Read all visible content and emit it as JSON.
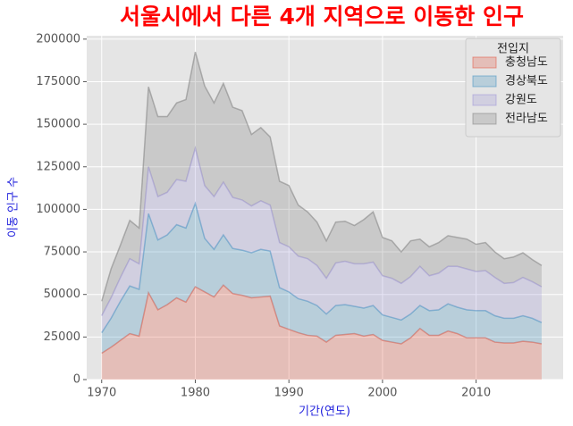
{
  "chart_data": {
    "type": "stacked-area",
    "title": "서울시에서 다른 4개 지역으로 이동한 인구",
    "xlabel": "기간(연도)",
    "ylabel": "이동 인구 수",
    "x": [
      1970,
      1971,
      1972,
      1973,
      1974,
      1975,
      1976,
      1977,
      1978,
      1979,
      1980,
      1981,
      1982,
      1983,
      1984,
      1985,
      1986,
      1987,
      1988,
      1989,
      1990,
      1991,
      1992,
      1993,
      1994,
      1995,
      1996,
      1997,
      1998,
      1999,
      2000,
      2001,
      2002,
      2003,
      2004,
      2005,
      2006,
      2007,
      2008,
      2009,
      2010,
      2011,
      2012,
      2013,
      2014,
      2015,
      2016,
      2017
    ],
    "series": [
      {
        "name": "충청남도",
        "color": "#E24A33",
        "values": [
          15500,
          19000,
          23000,
          27000,
          25500,
          51000,
          41000,
          44000,
          48000,
          45500,
          54500,
          51500,
          48500,
          55500,
          50500,
          49500,
          48000,
          48500,
          49000,
          31500,
          29500,
          27500,
          26000,
          25500,
          22000,
          26000,
          26500,
          27000,
          25500,
          26500,
          23000,
          22000,
          21000,
          24500,
          30000,
          26000,
          26000,
          28500,
          27000,
          24500,
          24500,
          24500,
          22000,
          21500,
          21500,
          22500,
          22000,
          21000
        ]
      },
      {
        "name": "경상북도",
        "color": "#348ABD",
        "values": [
          12000,
          17000,
          23000,
          28000,
          27500,
          46500,
          41000,
          41000,
          43000,
          43500,
          49000,
          31500,
          28000,
          29500,
          26500,
          26500,
          26500,
          28000,
          26500,
          22500,
          22000,
          20000,
          20000,
          18000,
          16500,
          17500,
          17500,
          16000,
          16500,
          17000,
          15000,
          14500,
          14000,
          14000,
          13500,
          14500,
          15000,
          16000,
          15500,
          16500,
          16000,
          16000,
          15500,
          14500,
          14500,
          15000,
          14000,
          12500
        ]
      },
      {
        "name": "강원도",
        "color": "#988ED5",
        "values": [
          10000,
          12000,
          14000,
          16000,
          15000,
          27500,
          25500,
          25000,
          26500,
          27500,
          32500,
          31000,
          31000,
          31000,
          30000,
          29500,
          27500,
          28500,
          27000,
          26500,
          26500,
          25000,
          25000,
          23500,
          21000,
          25000,
          25500,
          25000,
          26000,
          25500,
          23000,
          23000,
          21500,
          22000,
          23000,
          20500,
          21500,
          22000,
          24000,
          24000,
          23000,
          23500,
          22500,
          20500,
          21000,
          22500,
          21500,
          21000
        ]
      },
      {
        "name": "전라남도",
        "color": "#777777",
        "values": [
          8500,
          17000,
          19000,
          22500,
          21000,
          47000,
          47000,
          44500,
          45000,
          48000,
          56500,
          58500,
          55000,
          58000,
          53000,
          52500,
          42000,
          43000,
          40000,
          36000,
          36000,
          30000,
          27500,
          25500,
          22000,
          24000,
          23500,
          22500,
          26000,
          29500,
          22500,
          22000,
          18500,
          21000,
          16000,
          17000,
          18000,
          18000,
          17000,
          17500,
          16000,
          16500,
          15000,
          14500,
          15000,
          14500,
          13000,
          12500
        ]
      }
    ],
    "legend_title": "전입지",
    "legend": "upper right",
    "alpha": 0.25,
    "grid": true,
    "xlim": [
      1968.4,
      2019.3
    ],
    "xticks": [
      1970,
      1980,
      1990,
      2000,
      2010
    ],
    "ylim": [
      0,
      202000
    ],
    "yticks": [
      0,
      25000,
      50000,
      75000,
      100000,
      125000,
      150000,
      175000,
      200000
    ]
  }
}
